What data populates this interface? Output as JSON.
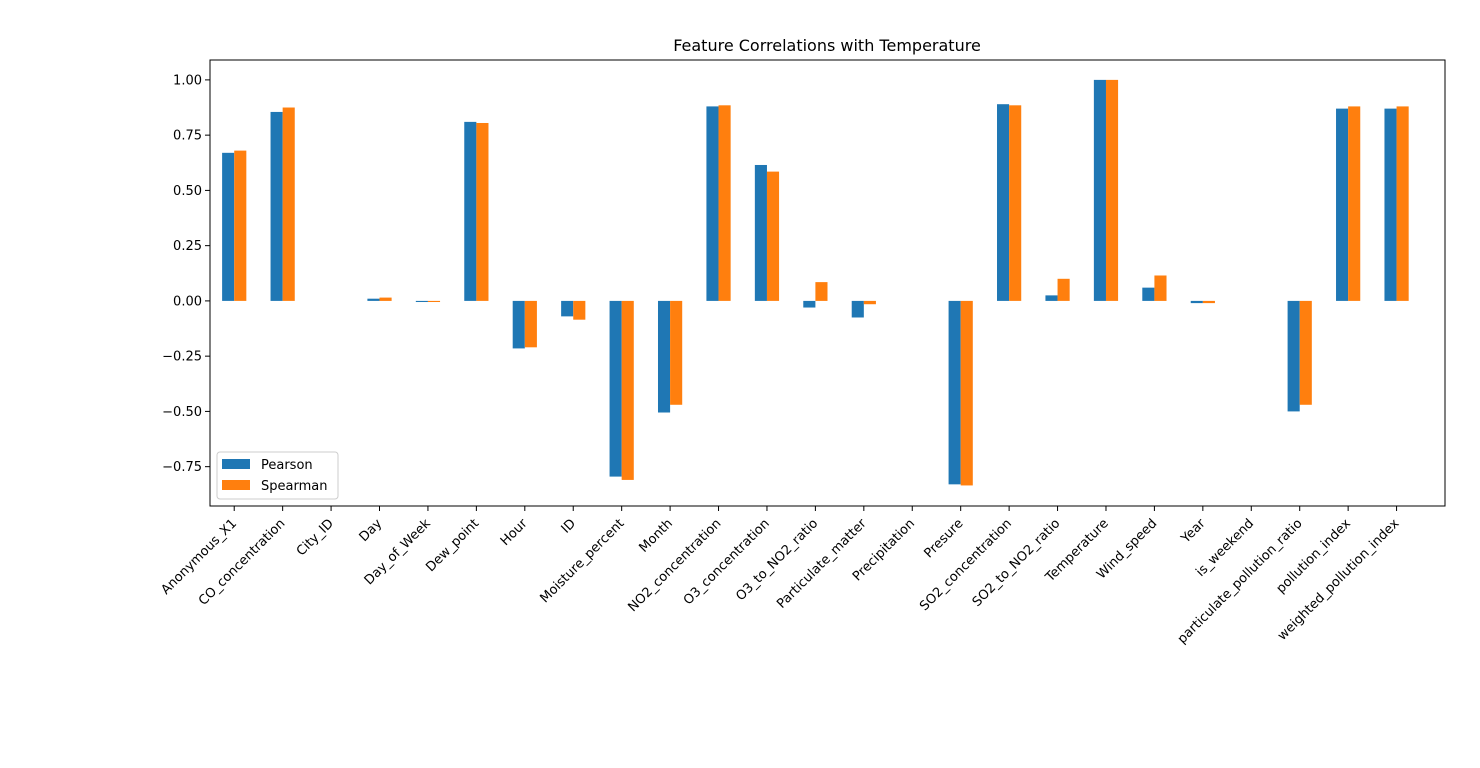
{
  "chart_data": {
    "type": "bar",
    "title": "Feature Correlations with Temperature",
    "xlabel": "",
    "ylabel": "",
    "ylim": [
      -0.928,
      1.09
    ],
    "yticks": [
      -0.75,
      -0.5,
      -0.25,
      0.0,
      0.25,
      0.5,
      0.75,
      1.0
    ],
    "ytick_labels": [
      "−0.75",
      "−0.50",
      "−0.25",
      "0.00",
      "0.25",
      "0.50",
      "0.75",
      "1.00"
    ],
    "grid": false,
    "legend_position": "lower-left",
    "categories": [
      "Anonymous_X1",
      "CO_concentration",
      "City_ID",
      "Day",
      "Day_of_Week",
      "Dew_point",
      "Hour",
      "ID",
      "Moisture_percent",
      "Month",
      "NO2_concentration",
      "O3_concentration",
      "O3_to_NO2_ratio",
      "Particulate_matter",
      "Precipitation",
      "Presure",
      "SO2_concentration",
      "SO2_to_NO2_ratio",
      "Temperature",
      "Wind_speed",
      "Year",
      "is_weekend",
      "particulate_pollution_ratio",
      "pollution_index",
      "weighted_pollution_index"
    ],
    "series": [
      {
        "name": "Pearson",
        "color": "#1f77b4",
        "values": [
          0.67,
          0.855,
          0.0,
          0.01,
          -0.005,
          0.81,
          -0.215,
          -0.07,
          -0.795,
          -0.505,
          0.88,
          0.615,
          -0.03,
          -0.075,
          0.0,
          -0.83,
          0.89,
          0.025,
          1.0,
          0.06,
          -0.01,
          0.0,
          -0.5,
          0.87,
          0.87
        ]
      },
      {
        "name": "Spearman",
        "color": "#ff7f0e",
        "values": [
          0.68,
          0.875,
          0.0,
          0.015,
          -0.005,
          0.805,
          -0.21,
          -0.085,
          -0.81,
          -0.47,
          0.885,
          0.585,
          0.085,
          -0.015,
          0.0,
          -0.835,
          0.885,
          0.1,
          1.0,
          0.115,
          -0.01,
          0.0,
          -0.47,
          0.88,
          0.88
        ]
      }
    ]
  }
}
